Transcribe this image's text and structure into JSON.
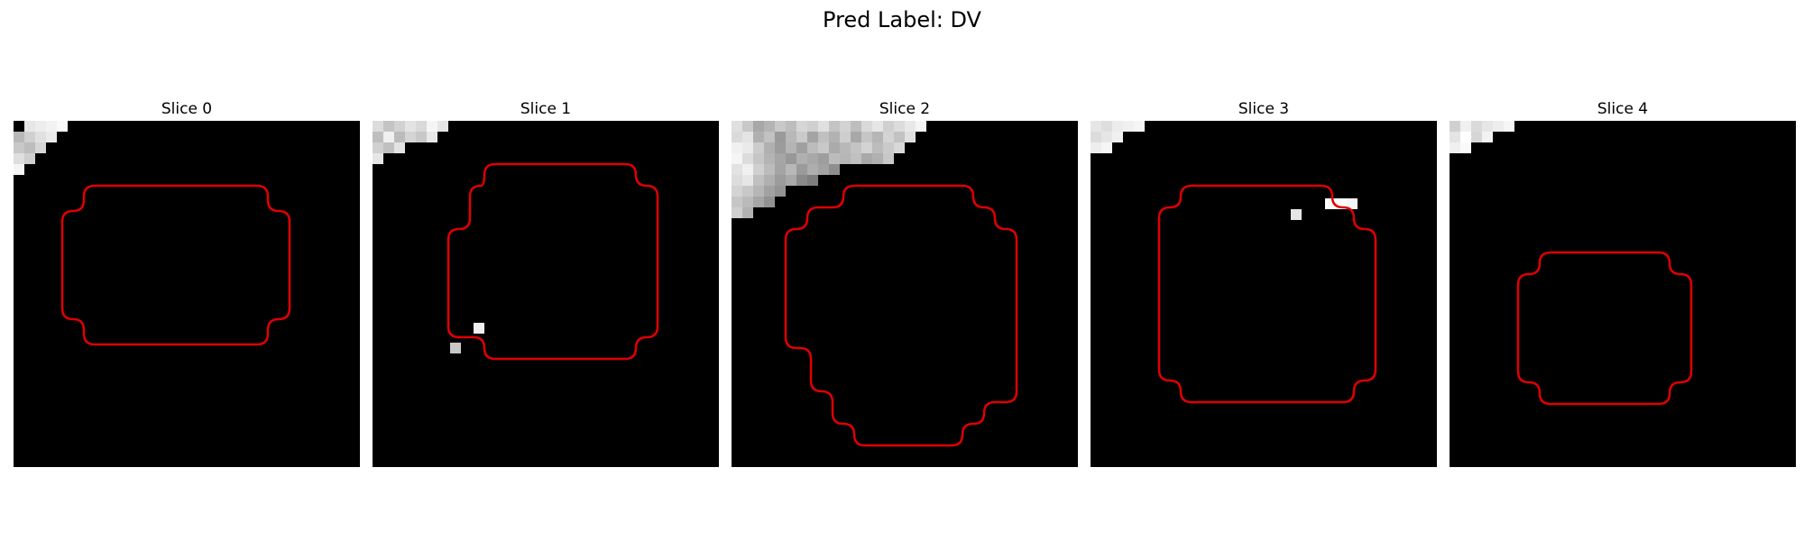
{
  "figure": {
    "title": "Pred Label: DV"
  },
  "slices": [
    {
      "title": "Slice 0"
    },
    {
      "title": "Slice 1"
    },
    {
      "title": "Slice 2"
    },
    {
      "title": "Slice 3"
    },
    {
      "title": "Slice 4"
    }
  ],
  "colors": {
    "background": "#000000",
    "contour": "#e00000"
  }
}
